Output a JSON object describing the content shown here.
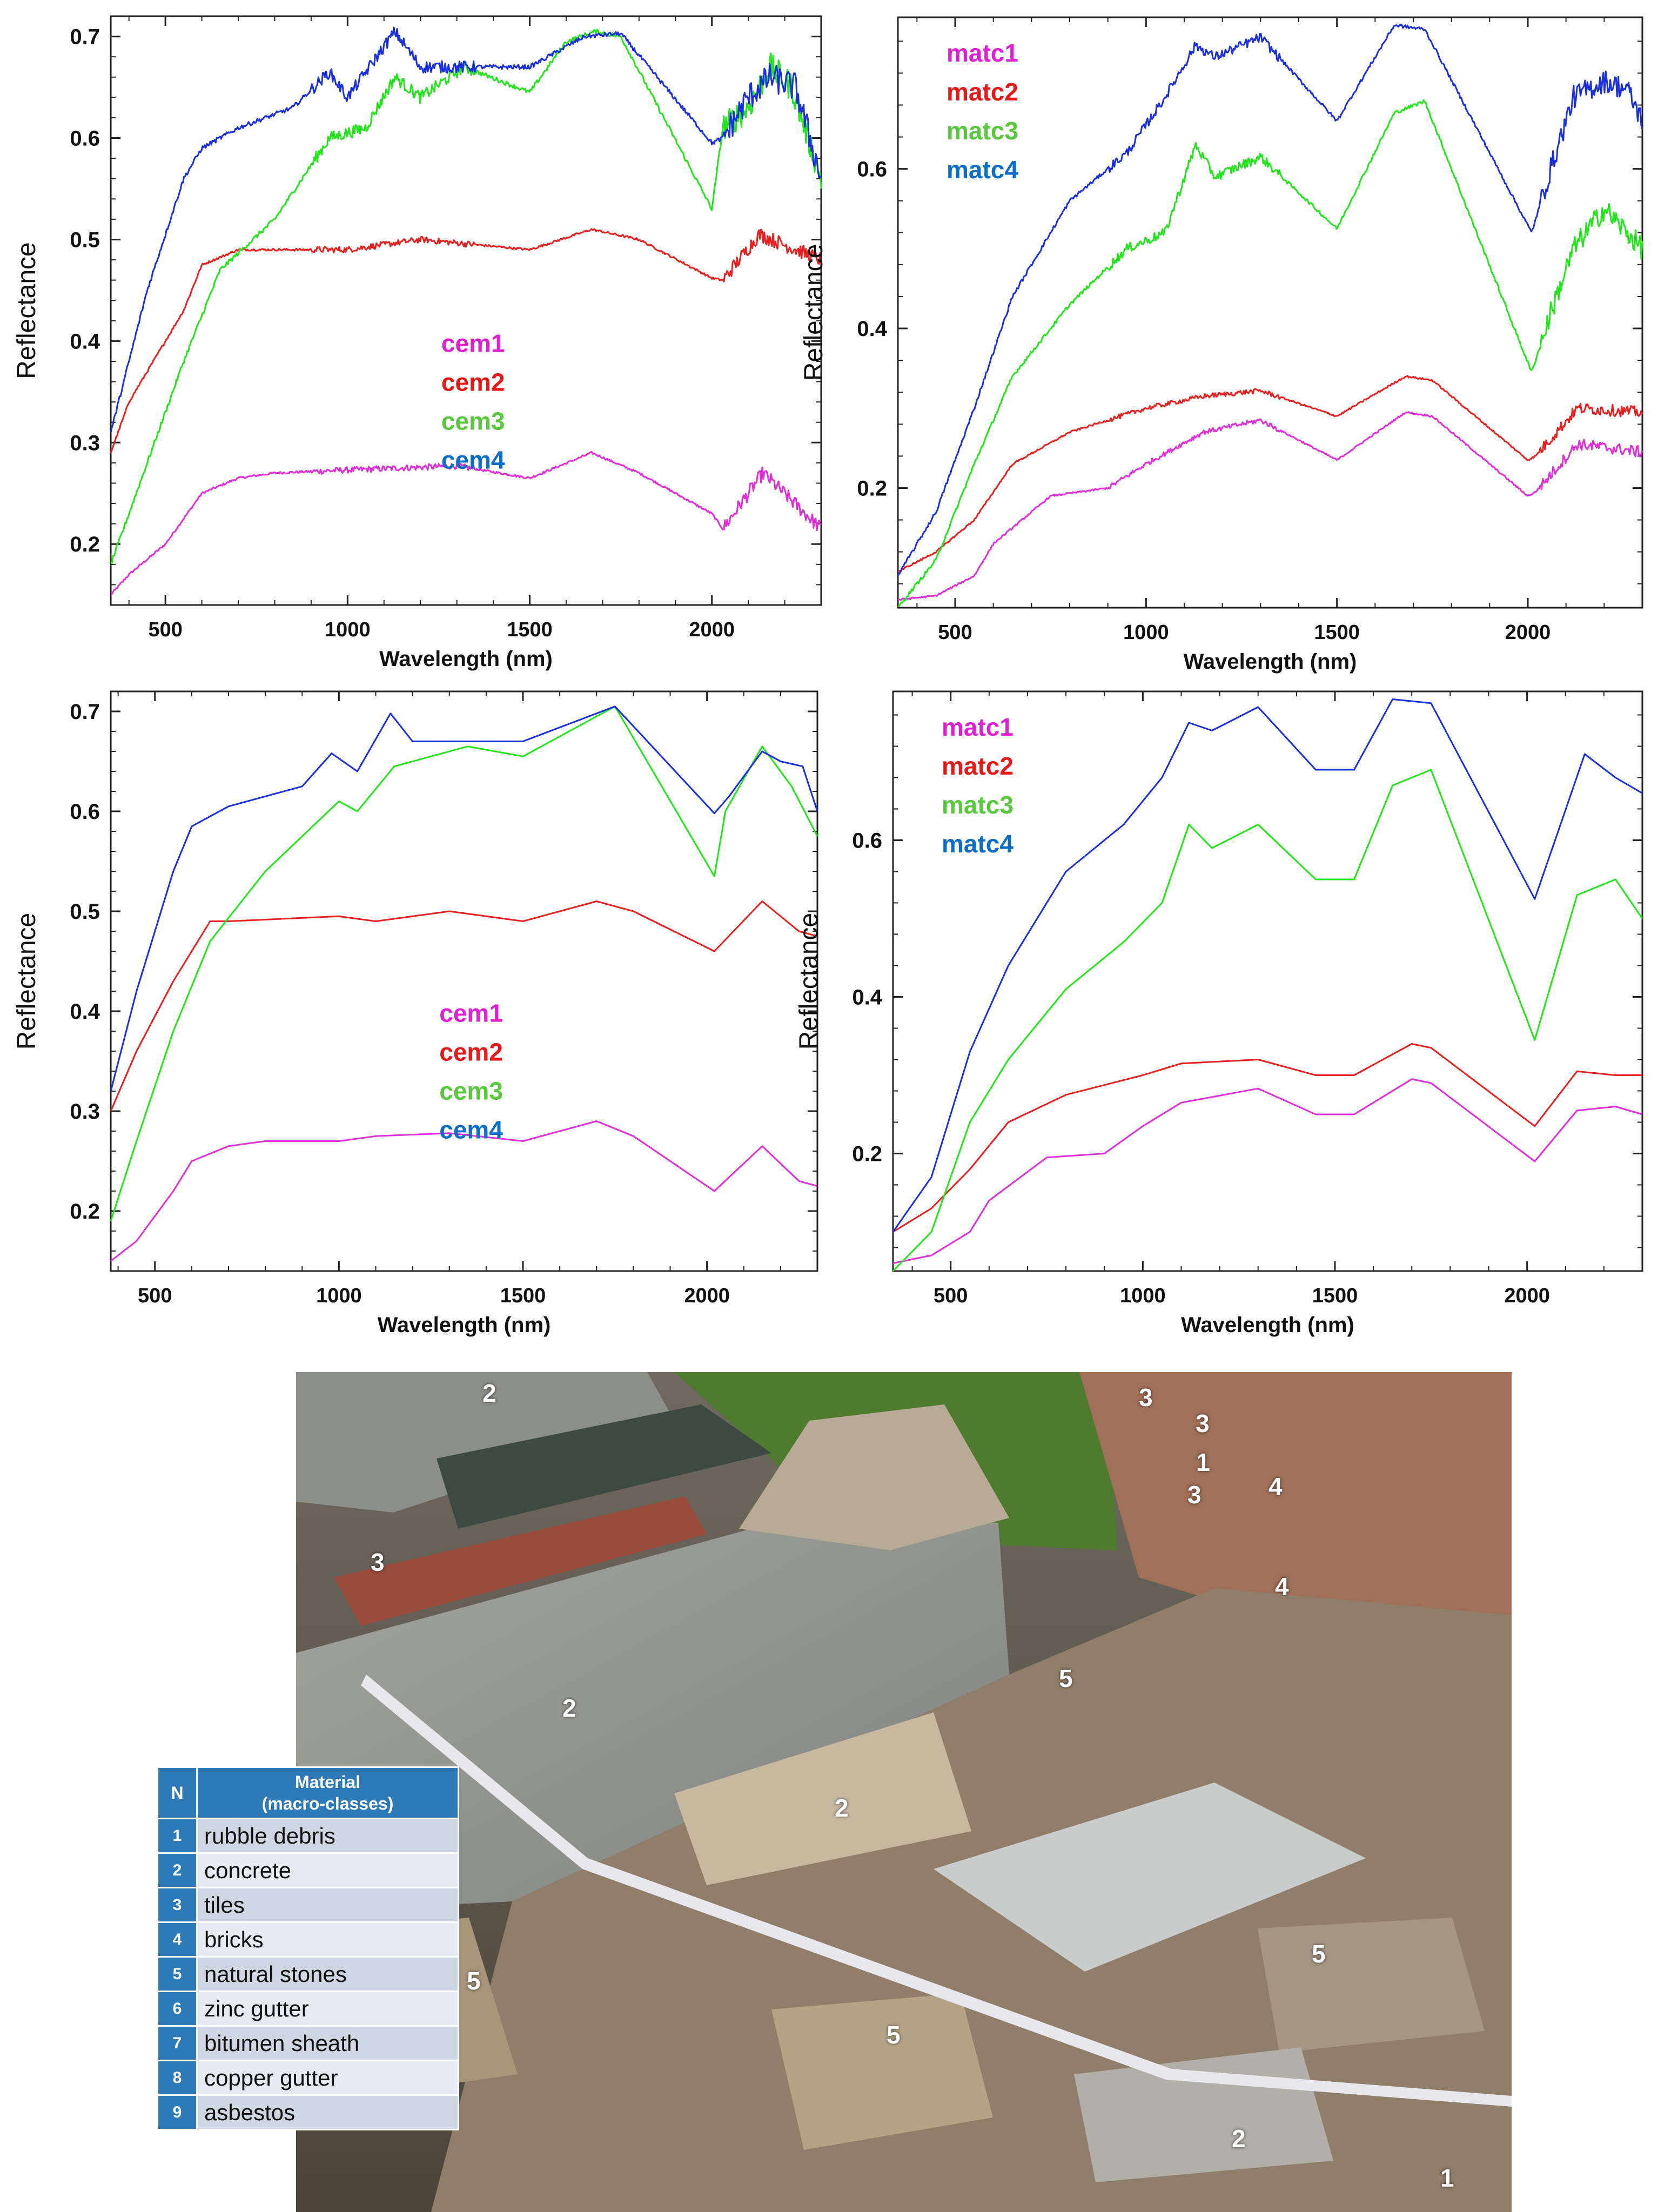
{
  "colors": {
    "series1": "#e02ed8",
    "series2": "#e8201f",
    "series3": "#22e51c",
    "series4": "#1a2fe0",
    "legend1": "#e020d0",
    "legend2": "#e81818",
    "legend3": "#58c83c",
    "legend4": "#0a6ec8",
    "table_header": "#2e7ab6"
  },
  "chart_data": [
    {
      "panel": "top-left",
      "type": "line",
      "xlabel": "Wavelength (nm)",
      "ylabel": "Reflectance",
      "xlim": [
        350,
        2300
      ],
      "ylim": [
        0.14,
        0.72
      ],
      "xticks": [
        500,
        1000,
        1500,
        2000
      ],
      "yticks": [
        0.2,
        0.3,
        0.4,
        0.5,
        0.6,
        0.7
      ],
      "ytick_labels": [
        "0.2",
        "0.3",
        "0.4",
        "0.5",
        "0.6",
        "0.7"
      ],
      "noisy": true,
      "legend_position": "center",
      "series": [
        {
          "name": "cem1",
          "x": [
            350,
            400,
            500,
            600,
            700,
            800,
            1000,
            1300,
            1500,
            1670,
            1800,
            2000,
            2030,
            2140,
            2300
          ],
          "values": [
            0.15,
            0.17,
            0.2,
            0.25,
            0.265,
            0.27,
            0.273,
            0.277,
            0.265,
            0.29,
            0.27,
            0.23,
            0.215,
            0.27,
            0.215
          ]
        },
        {
          "name": "cem2",
          "x": [
            350,
            400,
            500,
            550,
            600,
            700,
            1000,
            1200,
            1500,
            1670,
            1800,
            2000,
            2030,
            2130,
            2300
          ],
          "values": [
            0.29,
            0.34,
            0.4,
            0.43,
            0.475,
            0.49,
            0.49,
            0.5,
            0.49,
            0.51,
            0.5,
            0.462,
            0.46,
            0.505,
            0.48
          ]
        },
        {
          "name": "cem3",
          "x": [
            350,
            450,
            550,
            650,
            800,
            950,
            1050,
            1130,
            1200,
            1320,
            1500,
            1600,
            1680,
            1750,
            2000,
            2030,
            2100,
            2160,
            2220,
            2300
          ],
          "values": [
            0.18,
            0.28,
            0.38,
            0.47,
            0.52,
            0.6,
            0.61,
            0.66,
            0.64,
            0.67,
            0.645,
            0.695,
            0.705,
            0.7,
            0.53,
            0.61,
            0.63,
            0.67,
            0.65,
            0.56
          ]
        },
        {
          "name": "cem4",
          "x": [
            350,
            450,
            550,
            600,
            700,
            850,
            950,
            1000,
            1130,
            1200,
            1500,
            1650,
            1750,
            2000,
            2030,
            2100,
            2160,
            2230,
            2300
          ],
          "values": [
            0.31,
            0.45,
            0.56,
            0.59,
            0.61,
            0.63,
            0.665,
            0.64,
            0.705,
            0.67,
            0.67,
            0.7,
            0.703,
            0.595,
            0.6,
            0.64,
            0.66,
            0.65,
            0.56
          ]
        }
      ],
      "legend": [
        "cem1",
        "cem2",
        "cem3",
        "cem4"
      ]
    },
    {
      "panel": "top-right",
      "type": "line",
      "xlabel": "Wavelength (nm)",
      "ylabel": "Reflectance",
      "xlim": [
        350,
        2300
      ],
      "ylim": [
        0.05,
        0.79
      ],
      "xticks": [
        500,
        1000,
        1500,
        2000
      ],
      "yticks": [
        0.2,
        0.4,
        0.6
      ],
      "ytick_labels": [
        "0.2",
        "0.4",
        "0.6"
      ],
      "noisy": true,
      "legend_position": "top-left",
      "series": [
        {
          "name": "matc1",
          "x": [
            350,
            450,
            550,
            600,
            750,
            900,
            1000,
            1150,
            1300,
            1500,
            1680,
            1750,
            2000,
            2020,
            2130,
            2300
          ],
          "values": [
            0.06,
            0.065,
            0.09,
            0.13,
            0.19,
            0.2,
            0.23,
            0.27,
            0.285,
            0.235,
            0.295,
            0.29,
            0.19,
            0.195,
            0.255,
            0.245
          ]
        },
        {
          "name": "matc2",
          "x": [
            350,
            450,
            550,
            650,
            800,
            1000,
            1150,
            1300,
            1500,
            1680,
            1750,
            2000,
            2020,
            2130,
            2300
          ],
          "values": [
            0.095,
            0.12,
            0.16,
            0.23,
            0.27,
            0.3,
            0.315,
            0.322,
            0.29,
            0.34,
            0.335,
            0.235,
            0.24,
            0.3,
            0.295
          ]
        },
        {
          "name": "matc3",
          "x": [
            350,
            450,
            550,
            650,
            800,
            950,
            1050,
            1130,
            1180,
            1300,
            1500,
            1650,
            1730,
            2010,
            2060,
            2120,
            2200,
            2260,
            2300
          ],
          "values": [
            0.05,
            0.11,
            0.23,
            0.34,
            0.43,
            0.5,
            0.52,
            0.63,
            0.59,
            0.615,
            0.525,
            0.67,
            0.685,
            0.345,
            0.42,
            0.5,
            0.55,
            0.52,
            0.5
          ]
        },
        {
          "name": "matc4",
          "x": [
            350,
            450,
            550,
            650,
            800,
            950,
            1050,
            1130,
            1180,
            1300,
            1500,
            1650,
            1730,
            2010,
            2060,
            2120,
            2200,
            2260,
            2300
          ],
          "values": [
            0.09,
            0.17,
            0.3,
            0.44,
            0.56,
            0.62,
            0.69,
            0.755,
            0.74,
            0.765,
            0.66,
            0.78,
            0.775,
            0.52,
            0.6,
            0.69,
            0.71,
            0.7,
            0.66
          ]
        }
      ],
      "legend": [
        "matc1",
        "matc2",
        "matc3",
        "matc4"
      ]
    },
    {
      "panel": "bottom-left",
      "type": "line",
      "xlabel": "Wavelength (nm)",
      "ylabel": "Reflectance",
      "xlim": [
        380,
        2300
      ],
      "ylim": [
        0.14,
        0.72
      ],
      "xticks": [
        500,
        1000,
        1500,
        2000
      ],
      "yticks": [
        0.2,
        0.3,
        0.4,
        0.5,
        0.6,
        0.7
      ],
      "ytick_labels": [
        "0.2",
        "0.3",
        "0.4",
        "0.5",
        "0.6",
        "0.7"
      ],
      "noisy": false,
      "legend_position": "center",
      "series": [
        {
          "name": "cem1",
          "x": [
            380,
            450,
            550,
            600,
            700,
            800,
            1000,
            1100,
            1300,
            1500,
            1700,
            1800,
            2020,
            2150,
            2250,
            2300
          ],
          "values": [
            0.15,
            0.17,
            0.22,
            0.25,
            0.265,
            0.27,
            0.27,
            0.275,
            0.278,
            0.27,
            0.29,
            0.275,
            0.22,
            0.265,
            0.23,
            0.225
          ]
        },
        {
          "name": "cem2",
          "x": [
            380,
            450,
            550,
            650,
            700,
            1000,
            1100,
            1300,
            1500,
            1700,
            1800,
            2020,
            2150,
            2250,
            2300
          ],
          "values": [
            0.3,
            0.36,
            0.43,
            0.49,
            0.49,
            0.495,
            0.49,
            0.5,
            0.49,
            0.51,
            0.5,
            0.46,
            0.51,
            0.48,
            0.475
          ]
        },
        {
          "name": "cem3",
          "x": [
            380,
            450,
            550,
            650,
            800,
            1000,
            1050,
            1150,
            1350,
            1500,
            1750,
            2020,
            2050,
            2150,
            2230,
            2300
          ],
          "values": [
            0.19,
            0.27,
            0.38,
            0.47,
            0.54,
            0.61,
            0.6,
            0.645,
            0.665,
            0.655,
            0.705,
            0.535,
            0.6,
            0.665,
            0.625,
            0.575
          ]
        },
        {
          "name": "cem4",
          "x": [
            380,
            450,
            550,
            600,
            700,
            900,
            980,
            1050,
            1140,
            1200,
            1500,
            1750,
            2020,
            2060,
            2150,
            2200,
            2260,
            2300
          ],
          "values": [
            0.32,
            0.42,
            0.54,
            0.585,
            0.605,
            0.625,
            0.658,
            0.64,
            0.698,
            0.67,
            0.67,
            0.705,
            0.598,
            0.615,
            0.66,
            0.65,
            0.645,
            0.6
          ]
        }
      ],
      "legend": [
        "cem1",
        "cem2",
        "cem3",
        "cem4"
      ]
    },
    {
      "panel": "bottom-right",
      "type": "line",
      "xlabel": "Wavelength (nm)",
      "ylabel": "Reflectance",
      "xlim": [
        350,
        2300
      ],
      "ylim": [
        0.05,
        0.79
      ],
      "xticks": [
        500,
        1000,
        1500,
        2000
      ],
      "yticks": [
        0.2,
        0.4,
        0.6
      ],
      "ytick_labels": [
        "0.2",
        "0.4",
        "0.6"
      ],
      "noisy": false,
      "legend_position": "top-left",
      "series": [
        {
          "name": "matc1",
          "x": [
            350,
            450,
            550,
            600,
            750,
            900,
            1000,
            1100,
            1300,
            1450,
            1550,
            1700,
            1750,
            2020,
            2130,
            2230,
            2300
          ],
          "values": [
            0.06,
            0.07,
            0.1,
            0.14,
            0.195,
            0.2,
            0.235,
            0.265,
            0.283,
            0.25,
            0.25,
            0.295,
            0.29,
            0.19,
            0.255,
            0.26,
            0.25
          ]
        },
        {
          "name": "matc2",
          "x": [
            350,
            450,
            550,
            650,
            800,
            1000,
            1100,
            1300,
            1450,
            1550,
            1700,
            1750,
            2020,
            2130,
            2230,
            2300
          ],
          "values": [
            0.1,
            0.13,
            0.18,
            0.24,
            0.275,
            0.3,
            0.315,
            0.32,
            0.3,
            0.3,
            0.34,
            0.335,
            0.235,
            0.305,
            0.3,
            0.3
          ]
        },
        {
          "name": "matc3",
          "x": [
            350,
            450,
            550,
            650,
            800,
            950,
            1050,
            1120,
            1180,
            1300,
            1450,
            1550,
            1650,
            1750,
            2020,
            2130,
            2230,
            2300
          ],
          "values": [
            0.05,
            0.1,
            0.24,
            0.32,
            0.41,
            0.47,
            0.52,
            0.62,
            0.59,
            0.62,
            0.55,
            0.55,
            0.67,
            0.69,
            0.345,
            0.53,
            0.55,
            0.5
          ]
        },
        {
          "name": "matc4",
          "x": [
            350,
            450,
            550,
            650,
            800,
            950,
            1050,
            1120,
            1180,
            1300,
            1450,
            1550,
            1650,
            1750,
            2020,
            2080,
            2150,
            2230,
            2300
          ],
          "values": [
            0.1,
            0.17,
            0.33,
            0.44,
            0.56,
            0.62,
            0.68,
            0.75,
            0.74,
            0.77,
            0.69,
            0.69,
            0.78,
            0.775,
            0.525,
            0.61,
            0.71,
            0.68,
            0.66
          ]
        }
      ],
      "legend": [
        "matc1",
        "matc2",
        "matc3",
        "matc4"
      ]
    }
  ],
  "photo": {
    "labels": [
      "2",
      "3",
      "3",
      "1",
      "3",
      "4",
      "3",
      "4",
      "2",
      "5",
      "2",
      "5",
      "5",
      "5",
      "2",
      "1"
    ]
  },
  "table": {
    "header_n": "N",
    "header_material_line1": "Material",
    "header_material_line2": "(macro-classes)",
    "rows": [
      {
        "n": "1",
        "material": "rubble debris"
      },
      {
        "n": "2",
        "material": "concrete"
      },
      {
        "n": "3",
        "material": "tiles"
      },
      {
        "n": "4",
        "material": "bricks"
      },
      {
        "n": "5",
        "material": "natural stones"
      },
      {
        "n": "6",
        "material": "zinc gutter"
      },
      {
        "n": "7",
        "material": "bitumen sheath"
      },
      {
        "n": "8",
        "material": "copper gutter"
      },
      {
        "n": "9",
        "material": "asbestos"
      }
    ]
  }
}
